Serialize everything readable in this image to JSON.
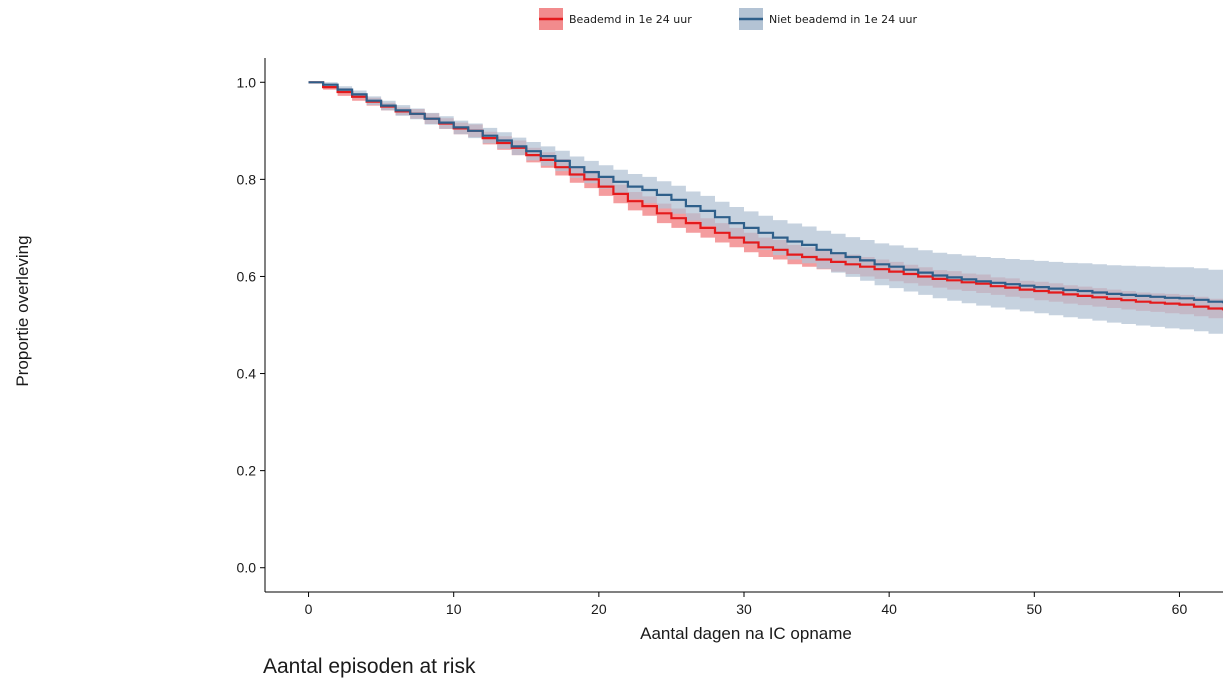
{
  "chart_data": {
    "type": "line",
    "xlabel": "Aantal dagen na IC opname",
    "ylabel": "Proportie overleving",
    "xlim": [
      -3,
      63
    ],
    "ylim": [
      -0.05,
      1.05
    ],
    "xticks": [
      0,
      10,
      20,
      30,
      40,
      50,
      60
    ],
    "yticks": [
      0.0,
      0.2,
      0.4,
      0.6,
      0.8,
      1.0
    ],
    "xtick_labels": [
      "0",
      "10",
      "20",
      "30",
      "40",
      "50",
      "60"
    ],
    "ytick_labels": [
      "0.0",
      "0.2",
      "0.4",
      "0.6",
      "0.8",
      "1.0"
    ],
    "legend_position": "top",
    "grid": false,
    "step": true,
    "series": [
      {
        "name": "Beademd in 1e 24 uur",
        "color": "#e41a1c",
        "band_color": "#f28b8d",
        "x": [
          0,
          1,
          2,
          3,
          4,
          5,
          6,
          7,
          8,
          9,
          10,
          11,
          12,
          13,
          14,
          15,
          16,
          17,
          18,
          19,
          20,
          21,
          22,
          23,
          24,
          25,
          26,
          27,
          28,
          29,
          30,
          31,
          32,
          33,
          34,
          35,
          36,
          37,
          38,
          39,
          40,
          41,
          42,
          43,
          44,
          45,
          46,
          47,
          48,
          49,
          50,
          51,
          52,
          53,
          54,
          55,
          56,
          57,
          58,
          59,
          60,
          61,
          62,
          63
        ],
        "y": [
          1.0,
          0.99,
          0.98,
          0.97,
          0.96,
          0.95,
          0.94,
          0.935,
          0.925,
          0.915,
          0.905,
          0.9,
          0.885,
          0.875,
          0.865,
          0.85,
          0.84,
          0.825,
          0.81,
          0.8,
          0.785,
          0.77,
          0.755,
          0.745,
          0.73,
          0.72,
          0.71,
          0.7,
          0.69,
          0.68,
          0.67,
          0.66,
          0.655,
          0.645,
          0.64,
          0.635,
          0.63,
          0.625,
          0.62,
          0.615,
          0.61,
          0.605,
          0.6,
          0.595,
          0.592,
          0.588,
          0.585,
          0.58,
          0.577,
          0.573,
          0.57,
          0.567,
          0.563,
          0.56,
          0.557,
          0.554,
          0.551,
          0.548,
          0.546,
          0.544,
          0.542,
          0.538,
          0.534,
          0.53
        ],
        "lower": [
          1.0,
          0.985,
          0.972,
          0.962,
          0.952,
          0.942,
          0.932,
          0.925,
          0.914,
          0.904,
          0.893,
          0.887,
          0.872,
          0.861,
          0.85,
          0.835,
          0.824,
          0.808,
          0.793,
          0.782,
          0.766,
          0.751,
          0.736,
          0.725,
          0.71,
          0.7,
          0.69,
          0.68,
          0.67,
          0.66,
          0.65,
          0.64,
          0.635,
          0.625,
          0.62,
          0.615,
          0.61,
          0.605,
          0.6,
          0.595,
          0.59,
          0.586,
          0.581,
          0.577,
          0.573,
          0.57,
          0.566,
          0.562,
          0.558,
          0.555,
          0.551,
          0.548,
          0.544,
          0.541,
          0.538,
          0.535,
          0.532,
          0.529,
          0.527,
          0.524,
          0.522,
          0.518,
          0.514,
          0.51
        ],
        "upper": [
          1.0,
          0.995,
          0.988,
          0.978,
          0.968,
          0.958,
          0.948,
          0.945,
          0.936,
          0.926,
          0.917,
          0.913,
          0.898,
          0.889,
          0.88,
          0.865,
          0.856,
          0.842,
          0.827,
          0.818,
          0.804,
          0.789,
          0.774,
          0.765,
          0.75,
          0.74,
          0.73,
          0.72,
          0.71,
          0.7,
          0.69,
          0.68,
          0.675,
          0.665,
          0.66,
          0.655,
          0.65,
          0.645,
          0.64,
          0.635,
          0.63,
          0.624,
          0.619,
          0.613,
          0.611,
          0.606,
          0.604,
          0.598,
          0.596,
          0.591,
          0.589,
          0.586,
          0.582,
          0.579,
          0.576,
          0.573,
          0.57,
          0.567,
          0.565,
          0.564,
          0.562,
          0.558,
          0.554,
          0.55
        ]
      },
      {
        "name": "Niet beademd in 1e 24 uur",
        "color": "#2e5f8a",
        "band_color": "#b3c3d4",
        "x": [
          0,
          1,
          2,
          3,
          4,
          5,
          6,
          7,
          8,
          9,
          10,
          11,
          12,
          13,
          14,
          15,
          16,
          17,
          18,
          19,
          20,
          21,
          22,
          23,
          24,
          25,
          26,
          27,
          28,
          29,
          30,
          31,
          32,
          33,
          34,
          35,
          36,
          37,
          38,
          39,
          40,
          41,
          42,
          43,
          44,
          45,
          46,
          47,
          48,
          49,
          50,
          51,
          52,
          53,
          54,
          55,
          56,
          57,
          58,
          59,
          60,
          61,
          62,
          63
        ],
        "y": [
          1.0,
          0.995,
          0.985,
          0.975,
          0.962,
          0.952,
          0.942,
          0.935,
          0.925,
          0.917,
          0.907,
          0.9,
          0.89,
          0.88,
          0.868,
          0.858,
          0.848,
          0.838,
          0.825,
          0.815,
          0.805,
          0.795,
          0.785,
          0.778,
          0.768,
          0.758,
          0.745,
          0.735,
          0.722,
          0.71,
          0.7,
          0.69,
          0.68,
          0.672,
          0.665,
          0.655,
          0.648,
          0.64,
          0.633,
          0.625,
          0.62,
          0.614,
          0.608,
          0.602,
          0.598,
          0.594,
          0.59,
          0.587,
          0.584,
          0.581,
          0.578,
          0.575,
          0.572,
          0.57,
          0.567,
          0.564,
          0.562,
          0.56,
          0.558,
          0.556,
          0.555,
          0.552,
          0.548,
          0.545
        ],
        "lower": [
          1.0,
          0.99,
          0.978,
          0.967,
          0.953,
          0.942,
          0.931,
          0.924,
          0.913,
          0.904,
          0.893,
          0.885,
          0.874,
          0.863,
          0.85,
          0.839,
          0.828,
          0.817,
          0.803,
          0.792,
          0.781,
          0.77,
          0.759,
          0.751,
          0.74,
          0.729,
          0.715,
          0.704,
          0.69,
          0.677,
          0.666,
          0.655,
          0.644,
          0.635,
          0.627,
          0.616,
          0.608,
          0.599,
          0.591,
          0.582,
          0.576,
          0.569,
          0.562,
          0.555,
          0.55,
          0.545,
          0.54,
          0.536,
          0.532,
          0.528,
          0.524,
          0.52,
          0.516,
          0.513,
          0.509,
          0.505,
          0.502,
          0.499,
          0.496,
          0.493,
          0.491,
          0.487,
          0.482,
          0.478
        ],
        "upper": [
          1.0,
          1.0,
          0.992,
          0.983,
          0.971,
          0.962,
          0.953,
          0.946,
          0.937,
          0.93,
          0.921,
          0.915,
          0.906,
          0.897,
          0.886,
          0.877,
          0.868,
          0.859,
          0.847,
          0.838,
          0.829,
          0.82,
          0.811,
          0.805,
          0.796,
          0.787,
          0.775,
          0.766,
          0.754,
          0.743,
          0.734,
          0.725,
          0.716,
          0.709,
          0.703,
          0.694,
          0.688,
          0.681,
          0.675,
          0.668,
          0.664,
          0.659,
          0.654,
          0.649,
          0.646,
          0.643,
          0.64,
          0.638,
          0.636,
          0.634,
          0.632,
          0.63,
          0.628,
          0.627,
          0.625,
          0.623,
          0.622,
          0.621,
          0.62,
          0.619,
          0.619,
          0.617,
          0.614,
          0.612
        ]
      }
    ]
  },
  "risk_table": {
    "title": "Aantal episoden at risk"
  }
}
